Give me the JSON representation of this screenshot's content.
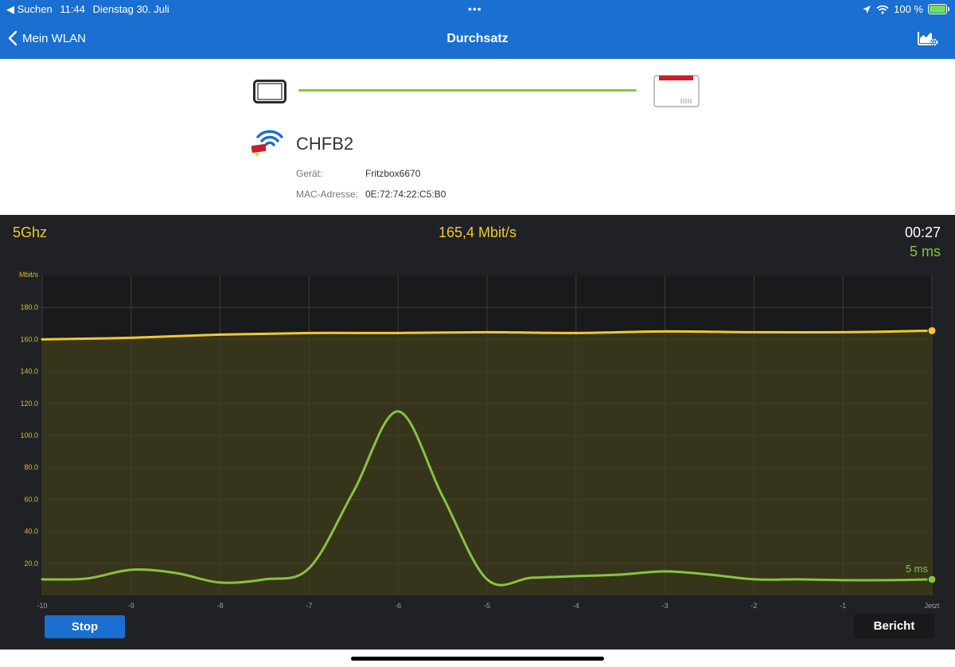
{
  "status_bar": {
    "back_app": "◀ Suchen",
    "time": "11:44",
    "date": "Dienstag 30. Juli",
    "dots": "•••",
    "battery": "100 %"
  },
  "nav": {
    "back_label": "Mein WLAN",
    "title": "Durchsatz"
  },
  "network": {
    "ssid": "CHFB2",
    "device_label": "Gerät:",
    "device_value": "Fritzbox6670",
    "mac_label": "MAC-Adresse:",
    "mac_value": "0E:72:74:22:C5:B0"
  },
  "metrics": {
    "band": "5Ghz",
    "throughput": "165,4 Mbit/s",
    "elapsed": "00:27",
    "latency": "5 ms"
  },
  "buttons": {
    "stop": "Stop",
    "report": "Bericht"
  },
  "colors": {
    "accent": "#1a6fd0",
    "throughput": "#f2c832",
    "latency": "#86c43f",
    "background": "#1f2124"
  },
  "chart_data": {
    "type": "line",
    "ylabel": "Mbit/s",
    "ylim": [
      0,
      200
    ],
    "y_ticks": [
      "20.0",
      "40.0",
      "60.0",
      "80.0",
      "100.0",
      "120.0",
      "140.0",
      "160.0",
      "180.0"
    ],
    "x_ticks": [
      "-10",
      "-9",
      "-8",
      "-7",
      "-6",
      "-5",
      "-4",
      "-3",
      "-2",
      "-1",
      "Jetzt"
    ],
    "xlim": [
      -10,
      0
    ],
    "grid": true,
    "end_label": "5 ms",
    "series": [
      {
        "color": "#f2c832",
        "x": [
          -10,
          -9,
          -8,
          -7,
          -6,
          -5,
          -4,
          -3,
          -2,
          -1,
          0
        ],
        "values": [
          160,
          161,
          163,
          164,
          164,
          164.5,
          164,
          165,
          164.5,
          164.5,
          165.4
        ]
      },
      {
        "color": "#86c43f",
        "x": [
          -10,
          -9.5,
          -9,
          -8.5,
          -8,
          -7.5,
          -7,
          -6.5,
          -6,
          -5.5,
          -5,
          -4.5,
          -4,
          -3.5,
          -3,
          -2.5,
          -2,
          -1.5,
          -1,
          -0.5,
          0
        ],
        "values": [
          10,
          10.5,
          16,
          14,
          8,
          10,
          17,
          65,
          115,
          62,
          10,
          11,
          12,
          13,
          15,
          13,
          10,
          10,
          9.5,
          9.5,
          10
        ]
      }
    ]
  }
}
